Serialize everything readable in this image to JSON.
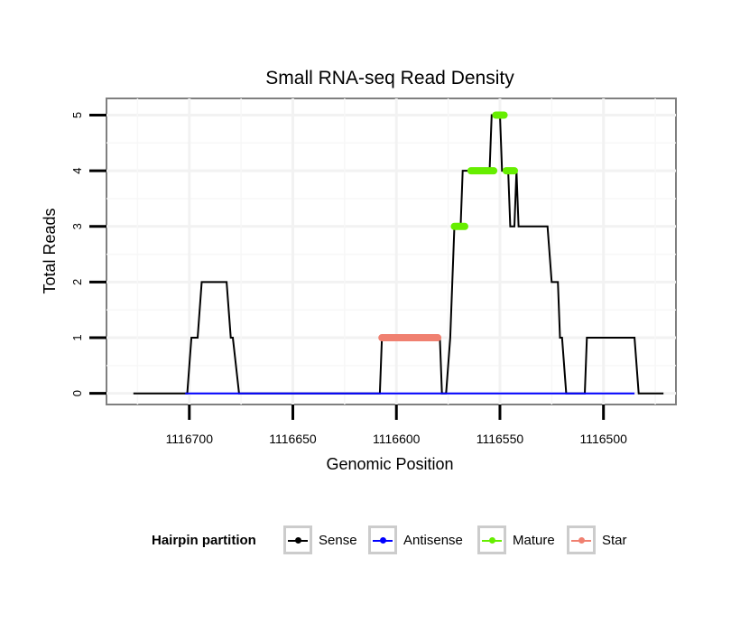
{
  "chart_data": {
    "type": "line",
    "title": "Small RNA-seq Read Density",
    "xlabel": "Genomic Position",
    "ylabel": "Total Reads",
    "x_reversed": true,
    "xlim": [
      1116465,
      1116740
    ],
    "ylim": [
      -0.2,
      5.3
    ],
    "x_ticks": [
      1116700,
      1116650,
      1116600,
      1116550,
      1116500
    ],
    "x_tick_labels": [
      "1116700",
      "1116650",
      "1116600",
      "1116550",
      "1116500"
    ],
    "y_ticks": [
      0,
      1,
      2,
      3,
      4,
      5
    ],
    "y_tick_labels": [
      "0",
      "1",
      "2",
      "3",
      "4",
      "5"
    ],
    "grid": true,
    "series": [
      {
        "name": "Sense",
        "color": "#000000",
        "points": [
          [
            1116727,
            0
          ],
          [
            1116701,
            0
          ],
          [
            1116699,
            1
          ],
          [
            1116696,
            1
          ],
          [
            1116694,
            2
          ],
          [
            1116682,
            2
          ],
          [
            1116680,
            1
          ],
          [
            1116679,
            1
          ],
          [
            1116676,
            0
          ],
          [
            1116608,
            0
          ],
          [
            1116607,
            1
          ],
          [
            1116590,
            1
          ],
          [
            1116580,
            1
          ],
          [
            1116579,
            1
          ],
          [
            1116578,
            0
          ],
          [
            1116576,
            0
          ],
          [
            1116574,
            1
          ],
          [
            1116573,
            2
          ],
          [
            1116572,
            3
          ],
          [
            1116569,
            3
          ],
          [
            1116568,
            4
          ],
          [
            1116564,
            4
          ],
          [
            1116555,
            4
          ],
          [
            1116554,
            5
          ],
          [
            1116550,
            5
          ],
          [
            1116549,
            4
          ],
          [
            1116546,
            4
          ],
          [
            1116545,
            3
          ],
          [
            1116543,
            3
          ],
          [
            1116542,
            4
          ],
          [
            1116541,
            3
          ],
          [
            1116527,
            3
          ],
          [
            1116525,
            2
          ],
          [
            1116522,
            2
          ],
          [
            1116521,
            1
          ],
          [
            1116520,
            1
          ],
          [
            1116518,
            0
          ],
          [
            1116509,
            0
          ],
          [
            1116508,
            1
          ],
          [
            1116485,
            1
          ],
          [
            1116483,
            0
          ],
          [
            1116471,
            0
          ]
        ]
      },
      {
        "name": "Antisense",
        "color": "#0000ff",
        "points": [
          [
            1116702,
            0
          ],
          [
            1116485,
            0
          ]
        ]
      },
      {
        "name": "Mature",
        "color": "#66ee00",
        "segments": [
          [
            [
              1116572,
              3
            ],
            [
              1116567,
              3
            ]
          ],
          [
            [
              1116564,
              4
            ],
            [
              1116553,
              4
            ]
          ],
          [
            [
              1116552,
              5
            ],
            [
              1116548,
              5
            ]
          ],
          [
            [
              1116547,
              4
            ],
            [
              1116543,
              4
            ]
          ]
        ]
      },
      {
        "name": "Star",
        "color": "#f08070",
        "segments": [
          [
            [
              1116607,
              1
            ],
            [
              1116580,
              1
            ]
          ]
        ]
      }
    ]
  },
  "legend": {
    "title": "Hairpin partition",
    "items": [
      {
        "label": "Sense",
        "color": "#000000"
      },
      {
        "label": "Antisense",
        "color": "#0000ff"
      },
      {
        "label": "Mature",
        "color": "#66ee00"
      },
      {
        "label": "Star",
        "color": "#f08070"
      }
    ]
  }
}
